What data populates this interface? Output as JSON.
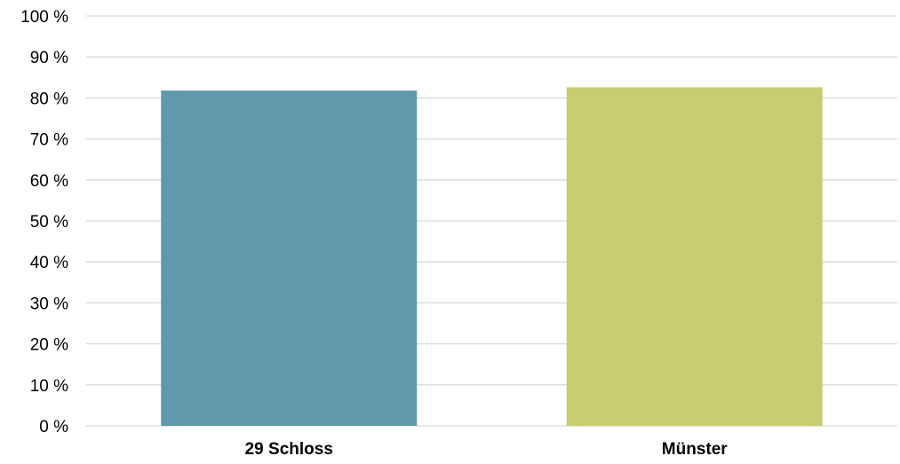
{
  "chart_data": {
    "type": "bar",
    "categories": [
      "29 Schloss",
      "Münster"
    ],
    "values": [
      81.8,
      82.6
    ],
    "colors": [
      "#6098ac",
      "#c8cd72"
    ],
    "ylim": [
      0,
      100
    ],
    "yticks": [
      0,
      10,
      20,
      30,
      40,
      50,
      60,
      70,
      80,
      90,
      100
    ],
    "ytick_suffix": " %",
    "grid": true,
    "grid_color": "#d9d9d9",
    "legend": "none",
    "title": "",
    "xlabel": "",
    "ylabel": ""
  }
}
